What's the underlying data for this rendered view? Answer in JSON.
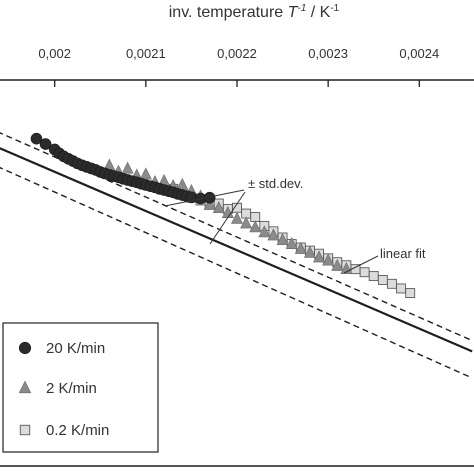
{
  "chart_data": {
    "type": "scatter",
    "x_axis": {
      "position": "top",
      "title_text": "inv. temperature ",
      "title_symbol": "T",
      "title_symbol_exp": "-1",
      "title_unit_sep": " / K",
      "title_unit_exp": "-1",
      "range": [
        0.00194,
        0.00246
      ],
      "ticks": [
        0.002,
        0.0021,
        0.0022,
        0.0023,
        0.0024
      ],
      "tick_labels": [
        "0,002",
        "0,0021",
        "0,0022",
        "0,0023",
        "0,0024"
      ]
    },
    "y_axis": {
      "range": [
        0,
        1
      ]
    },
    "grid": false,
    "legend_position": "bottom-left",
    "linear_fit": {
      "x": [
        0.001937,
        0.002458
      ],
      "y": [
        0.826,
        0.297
      ]
    },
    "std_dev_upper": {
      "x": [
        0.001937,
        0.002458
      ],
      "y": [
        0.866,
        0.325
      ]
    },
    "std_dev_lower": {
      "x": [
        0.001937,
        0.002458
      ],
      "y": [
        0.776,
        0.228
      ]
    },
    "annotations": {
      "std_dev_label": "± std.dev.",
      "linear_fit_label": "linear fit"
    },
    "series": [
      {
        "name": "20 K/min",
        "marker": "circle",
        "color": "#2b2b2b",
        "x": [
          0.00198,
          0.00199,
          0.002,
          0.002005,
          0.00201,
          0.002015,
          0.00202,
          0.002025,
          0.00203,
          0.002035,
          0.00204,
          0.002045,
          0.00205,
          0.002055,
          0.00206,
          0.002065,
          0.00207,
          0.002075,
          0.00208,
          0.002085,
          0.00209,
          0.002095,
          0.0021,
          0.002105,
          0.00211,
          0.002115,
          0.00212,
          0.002125,
          0.00213,
          0.002135,
          0.00214,
          0.002145,
          0.00215,
          0.00216,
          0.00217
        ],
        "y": [
          0.848,
          0.834,
          0.82,
          0.81,
          0.802,
          0.796,
          0.79,
          0.784,
          0.779,
          0.775,
          0.771,
          0.767,
          0.762,
          0.758,
          0.754,
          0.751,
          0.748,
          0.744,
          0.741,
          0.738,
          0.735,
          0.731,
          0.728,
          0.725,
          0.722,
          0.718,
          0.715,
          0.712,
          0.709,
          0.705,
          0.702,
          0.699,
          0.696,
          0.693,
          0.695
        ]
      },
      {
        "name": "2 K/min",
        "marker": "triangle",
        "color": "#8a8a8a",
        "x": [
          0.00206,
          0.00207,
          0.00208,
          0.00209,
          0.0021,
          0.00211,
          0.00212,
          0.00213,
          0.00214,
          0.00215,
          0.00216,
          0.00217,
          0.00218,
          0.00219,
          0.0022,
          0.00221,
          0.00222,
          0.00223,
          0.00224,
          0.00225,
          0.00226,
          0.00227,
          0.00228,
          0.00229,
          0.0023,
          0.00231,
          0.00232
        ],
        "y": [
          0.778,
          0.762,
          0.77,
          0.752,
          0.755,
          0.735,
          0.738,
          0.725,
          0.728,
          0.712,
          0.698,
          0.676,
          0.668,
          0.655,
          0.64,
          0.628,
          0.618,
          0.605,
          0.597,
          0.585,
          0.575,
          0.562,
          0.552,
          0.54,
          0.532,
          0.518,
          0.51
        ]
      },
      {
        "name": "0.2 K/min",
        "marker": "square",
        "color": "#dcdcdc",
        "x": [
          0.00213,
          0.00214,
          0.00215,
          0.00216,
          0.00217,
          0.00218,
          0.00219,
          0.0022,
          0.00221,
          0.00222,
          0.00223,
          0.00224,
          0.00225,
          0.00226,
          0.00227,
          0.00228,
          0.00229,
          0.0023,
          0.00231,
          0.00232,
          0.00233,
          0.00234,
          0.00235,
          0.00236,
          0.00237,
          0.00238,
          0.00239
        ],
        "y": [
          0.718,
          0.706,
          0.695,
          0.688,
          0.678,
          0.68,
          0.666,
          0.669,
          0.654,
          0.645,
          0.622,
          0.608,
          0.592,
          0.575,
          0.566,
          0.558,
          0.55,
          0.538,
          0.528,
          0.52,
          0.51,
          0.502,
          0.492,
          0.482,
          0.472,
          0.46,
          0.448
        ]
      }
    ]
  }
}
